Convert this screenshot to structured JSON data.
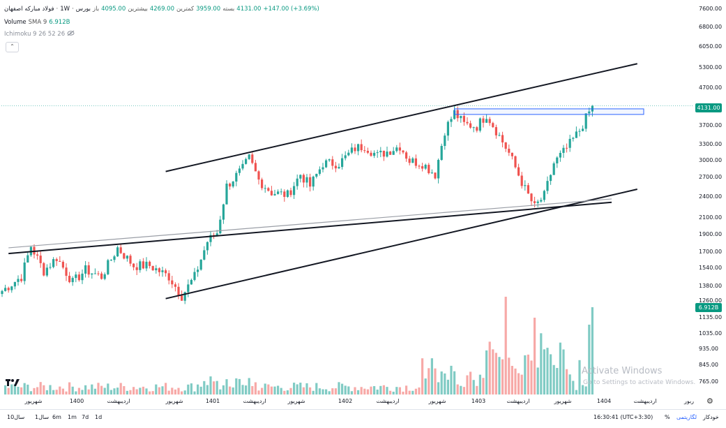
{
  "header": {
    "title": "فولاد مبارکه اصفهان",
    "interval": "1W",
    "exchange": "بورس",
    "open_label": "باز",
    "open_value": "4095.00",
    "high_label": "بیشترین",
    "high_value": "4269.00",
    "low_label": "کمترین",
    "low_value": "3959.00",
    "close_label": "بسته",
    "close_value": "4131.00",
    "change": "+147.00 (+3.69%)",
    "volume_label": "Volume",
    "volume_params": "SMA 9",
    "volume_value": "6.912B",
    "ichimoku_label": "Ichimoku 9 26 52 26"
  },
  "price_axis": {
    "ticks": [
      "7600.00",
      "6800.00",
      "6050.00",
      "5300.00",
      "4700.00",
      "3700.00",
      "3300.00",
      "3000.00",
      "2700.00",
      "2400.00",
      "2100.00",
      "1900.00",
      "1700.00",
      "1540.00",
      "1380.00",
      "1260.00",
      "1135.00",
      "1035.00",
      "935.00",
      "845.00",
      "765.00"
    ],
    "last_price_tag": "4131.00",
    "volume_tag": "6.912B"
  },
  "time_axis": {
    "labels": [
      "شهریور",
      "1400",
      "اردیبهشت",
      "شهریور",
      "1401",
      "اردیبهشت",
      "شهریور",
      "1402",
      "اردیبهشت",
      "شهریور",
      "1403",
      "اردیبهشت",
      "شهریور",
      "1404",
      "اردیبهشت",
      "ربور"
    ]
  },
  "bottom_bar": {
    "timeframes": [
      "10سال",
      "1سال",
      "6m",
      "1m",
      "7d",
      "1d"
    ],
    "clock": "16:30:41 (UTC+3:30)",
    "percent": "%",
    "log": "لگاریتمی",
    "auto": "خودکار"
  },
  "watermark": {
    "line1": "Activate Windows",
    "line2": "Go to Settings to activate Windows."
  },
  "colors": {
    "up": "#26a69a",
    "down": "#ef5350",
    "vol_up": "#80cbc4",
    "vol_down": "#f7a9a7",
    "trendline": "#131722",
    "box": "#2962ff"
  },
  "chart_data": {
    "type": "candlestick",
    "y_scale": "log",
    "ylim": [
      640,
      8000
    ],
    "anchors": [
      {
        "i": 0,
        "p": 1180
      },
      {
        "i": 6,
        "p": 1300
      },
      {
        "i": 9,
        "p": 1600
      },
      {
        "i": 13,
        "p": 1350
      },
      {
        "i": 17,
        "p": 1480
      },
      {
        "i": 22,
        "p": 1250
      },
      {
        "i": 26,
        "p": 1360
      },
      {
        "i": 31,
        "p": 1300
      },
      {
        "i": 36,
        "p": 1580
      },
      {
        "i": 41,
        "p": 1400
      },
      {
        "i": 46,
        "p": 1400
      },
      {
        "i": 52,
        "p": 1300
      },
      {
        "i": 56,
        "p": 1140
      },
      {
        "i": 60,
        "p": 1300
      },
      {
        "i": 64,
        "p": 1650
      },
      {
        "i": 67,
        "p": 1750
      },
      {
        "i": 70,
        "p": 2400
      },
      {
        "i": 75,
        "p": 2700
      },
      {
        "i": 77,
        "p": 2900
      },
      {
        "i": 80,
        "p": 2500
      },
      {
        "i": 84,
        "p": 2300
      },
      {
        "i": 89,
        "p": 2260
      },
      {
        "i": 93,
        "p": 2600
      },
      {
        "i": 96,
        "p": 2400
      },
      {
        "i": 100,
        "p": 2800
      },
      {
        "i": 105,
        "p": 2800
      },
      {
        "i": 110,
        "p": 3100
      },
      {
        "i": 113,
        "p": 3150
      },
      {
        "i": 117,
        "p": 2950
      },
      {
        "i": 124,
        "p": 3150
      },
      {
        "i": 127,
        "p": 2850
      },
      {
        "i": 131,
        "p": 2800
      },
      {
        "i": 135,
        "p": 2600
      },
      {
        "i": 138,
        "p": 3500
      },
      {
        "i": 141,
        "p": 3950
      },
      {
        "i": 144,
        "p": 3650
      },
      {
        "i": 148,
        "p": 3600
      },
      {
        "i": 151,
        "p": 3900
      },
      {
        "i": 154,
        "p": 3500
      },
      {
        "i": 158,
        "p": 3000
      },
      {
        "i": 163,
        "p": 2350
      },
      {
        "i": 166,
        "p": 2080
      },
      {
        "i": 169,
        "p": 2250
      },
      {
        "i": 172,
        "p": 2800
      },
      {
        "i": 176,
        "p": 3100
      },
      {
        "i": 180,
        "p": 3500
      },
      {
        "i": 184,
        "p": 4131
      }
    ],
    "trendlines": [
      {
        "name": "upper-channel",
        "p1": {
          "i": 51,
          "p": 2650
        },
        "p2": {
          "i": 198,
          "p": 5500
        }
      },
      {
        "name": "lower-channel",
        "p1": {
          "i": 51,
          "p": 1120
        },
        "p2": {
          "i": 198,
          "p": 2350
        }
      },
      {
        "name": "support-black",
        "p1": {
          "i": 2,
          "p": 1520
        },
        "p2": {
          "i": 190,
          "p": 2150
        }
      },
      {
        "name": "support-gray",
        "p1": {
          "i": 2,
          "p": 1580
        },
        "p2": {
          "i": 190,
          "p": 2200
        }
      }
    ],
    "resistance_box": {
      "i_start": 141,
      "i_end": 200,
      "p_low": 3900,
      "p_high": 4050
    },
    "last_price": 4131,
    "volume_last": "6.912B"
  }
}
